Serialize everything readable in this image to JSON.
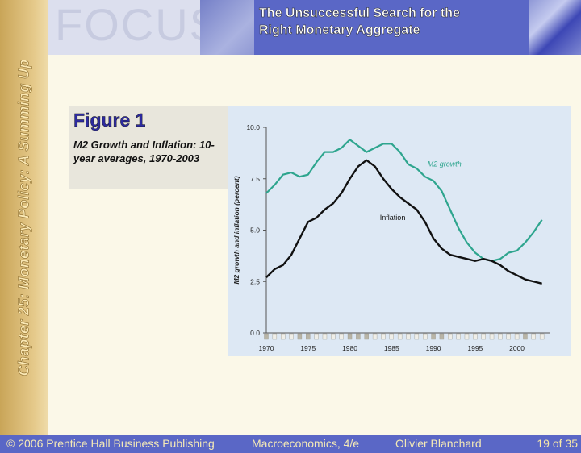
{
  "slide": {
    "side_title": "Chapter 25: Monetary Policy: A Summing Up",
    "banner_word": "FOCUS",
    "title": "The Unsuccessful Search for the\nRight Monetary Aggregate"
  },
  "figure": {
    "label": "Figure 1",
    "caption": "M2 Growth and Inflation: 10-year averages, 1970-2003"
  },
  "footer": {
    "copyright": "© 2006 Prentice Hall Business Publishing",
    "book": "Macroeconomics, 4/e",
    "author": "Olivier Blanchard",
    "page_current": "19",
    "page_of": "of 35"
  },
  "colors": {
    "band": "#d9b978",
    "banner_title_bg": "#5a67c6",
    "footer_bg": "#5a67c6",
    "m2_line": "#2ea58e",
    "inflation_line": "#111111",
    "chart_bg": "#dde8f4"
  },
  "chart_data": {
    "type": "line",
    "title": "",
    "xlabel": "",
    "ylabel": "M2 growth and inflation (percent)",
    "xlim": [
      1970,
      2004
    ],
    "ylim": [
      0,
      10
    ],
    "x_ticks": [
      "1970",
      "1975",
      "1980",
      "1985",
      "1990",
      "1995",
      "2000"
    ],
    "y_ticks": [
      "0.0",
      "2.5",
      "5.0",
      "7.5",
      "10.0"
    ],
    "grid": false,
    "legend": "inline labels",
    "series": [
      {
        "name": "M2 growth",
        "color": "#2ea58e",
        "x": [
          1970,
          1971,
          1972,
          1973,
          1974,
          1975,
          1976,
          1977,
          1978,
          1979,
          1980,
          1981,
          1982,
          1983,
          1984,
          1985,
          1986,
          1987,
          1988,
          1989,
          1990,
          1991,
          1992,
          1993,
          1994,
          1995,
          1996,
          1997,
          1998,
          1999,
          2000,
          2001,
          2002,
          2003
        ],
        "y": [
          6.8,
          7.2,
          7.7,
          7.8,
          7.6,
          7.7,
          8.3,
          8.8,
          8.8,
          9.0,
          9.4,
          9.1,
          8.8,
          9.0,
          9.2,
          9.2,
          8.8,
          8.2,
          8.0,
          7.6,
          7.4,
          6.9,
          6.0,
          5.1,
          4.4,
          3.9,
          3.6,
          3.5,
          3.6,
          3.9,
          4.0,
          4.4,
          4.9,
          5.5
        ]
      },
      {
        "name": "Inflation",
        "color": "#111111",
        "x": [
          1970,
          1971,
          1972,
          1973,
          1974,
          1975,
          1976,
          1977,
          1978,
          1979,
          1980,
          1981,
          1982,
          1983,
          1984,
          1985,
          1986,
          1987,
          1988,
          1989,
          1990,
          1991,
          1992,
          1993,
          1994,
          1995,
          1996,
          1997,
          1998,
          1999,
          2000,
          2001,
          2002,
          2003
        ],
        "y": [
          2.7,
          3.1,
          3.3,
          3.8,
          4.6,
          5.4,
          5.6,
          6.0,
          6.3,
          6.8,
          7.5,
          8.1,
          8.4,
          8.1,
          7.5,
          7.0,
          6.6,
          6.3,
          6.0,
          5.4,
          4.6,
          4.1,
          3.8,
          3.7,
          3.6,
          3.5,
          3.6,
          3.5,
          3.3,
          3.0,
          2.8,
          2.6,
          2.5,
          2.4
        ]
      }
    ]
  }
}
